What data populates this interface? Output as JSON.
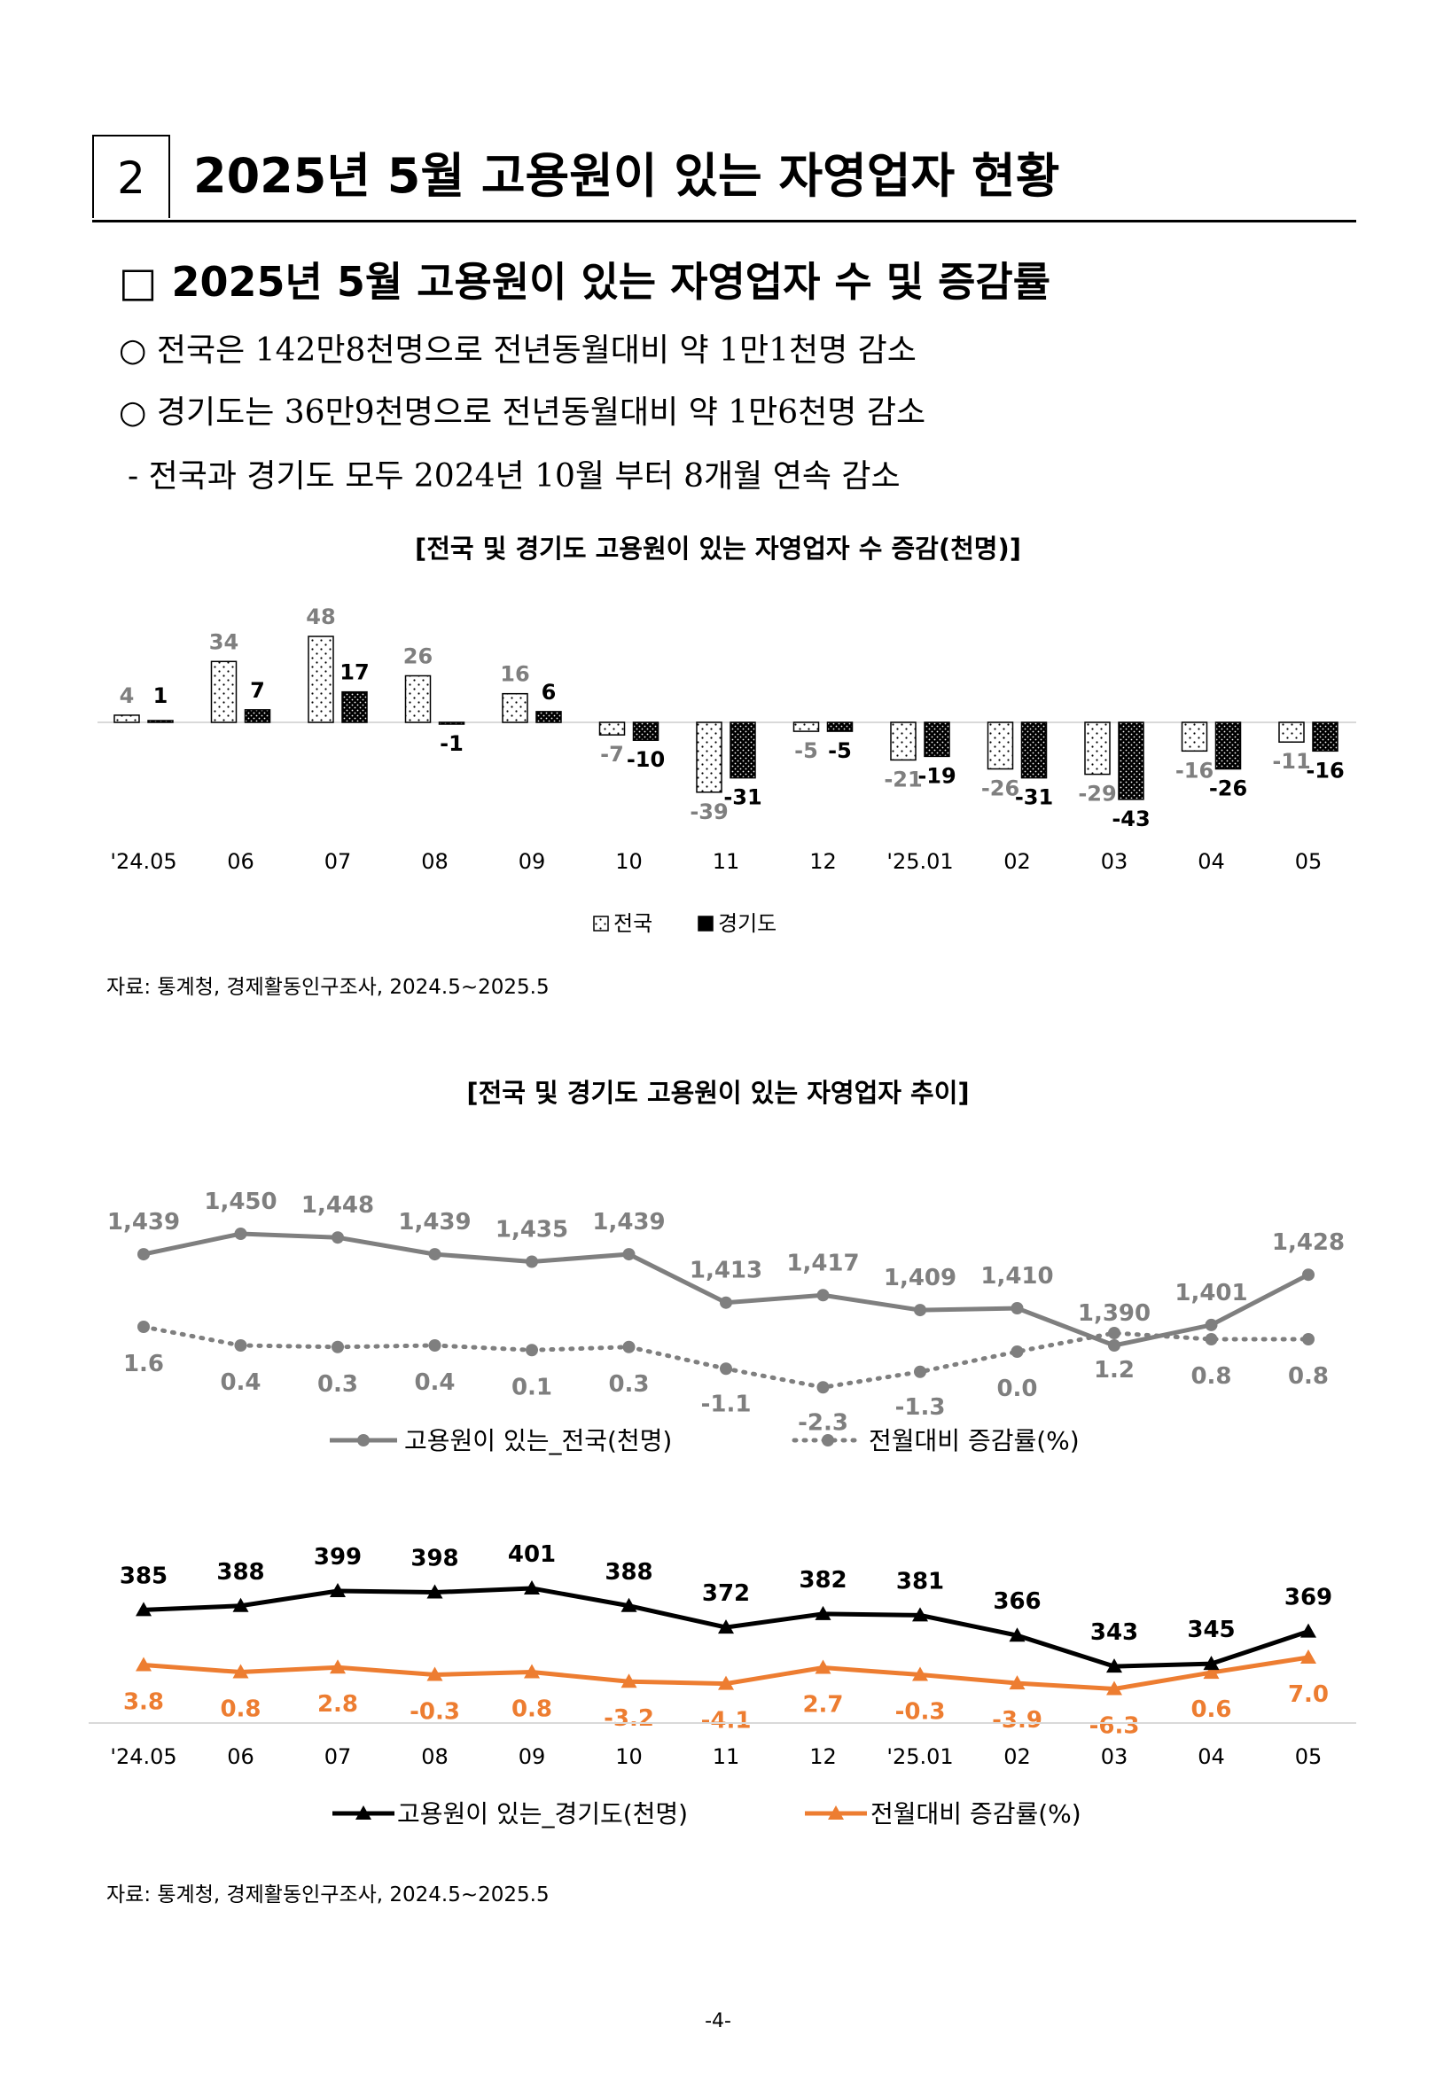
{
  "section": {
    "number": "2",
    "title": "2025년 5월 고용원이 있는 자영업자 현황"
  },
  "subheading": "□ 2025년 5월 고용원이 있는 자영업자 수 및 증감률",
  "bullets": [
    "○ 전국은 142만8천명으로 전년동월대비 약 1만1천명 감소",
    "○ 경기도는 36만9천명으로 전년동월대비 약 1만6천명 감소",
    "- 전국과 경기도 모두 2024년 10월 부터 8개월 연속 감소"
  ],
  "chart1_title": "[전국 및 경기도 고용원이 있는 자영업자 수 증감(천명)]",
  "source1": "자료: 통계청, 경제활동인구조사, 2024.5~2025.5",
  "chart2_title": "[전국 및 경기도 고용원이 있는 자영업자 추이]",
  "source2": "자료: 통계청, 경제활동인구조사, 2024.5~2025.5",
  "page_number": "-4-",
  "colors": {
    "gray": "#7f7f7f",
    "orange": "#ed7d31",
    "black": "#000000"
  },
  "chart_data": [
    {
      "type": "bar",
      "title": "[전국 및 경기도 고용원이 있는 자영업자 수 증감(천명)]",
      "categories": [
        "'24.05",
        "06",
        "07",
        "08",
        "09",
        "10",
        "11",
        "12",
        "'25.01",
        "02",
        "03",
        "04",
        "05"
      ],
      "series": [
        {
          "name": "전국",
          "values": [
            4,
            34,
            48,
            26,
            16,
            -7,
            -39,
            -5,
            -21,
            -26,
            -29,
            -16,
            -11
          ]
        },
        {
          "name": "경기도",
          "values": [
            1,
            7,
            17,
            -1,
            6,
            -10,
            -31,
            -5,
            -19,
            -31,
            -43,
            -26,
            -16
          ]
        }
      ],
      "legend": "bottom"
    },
    {
      "type": "line",
      "categories": [
        "'24.05",
        "06",
        "07",
        "08",
        "09",
        "10",
        "11",
        "12",
        "'25.01",
        "02",
        "03",
        "04",
        "05"
      ],
      "series": [
        {
          "name": "고용원이 있는_전국(천명)",
          "values": [
            1439,
            1450,
            1448,
            1439,
            1435,
            1439,
            1413,
            1417,
            1409,
            1410,
            1390,
            1401,
            1428
          ]
        },
        {
          "name": "전월대비 증감률(%)",
          "values": [
            1.6,
            0.4,
            0.3,
            0.4,
            0.1,
            0.3,
            -1.1,
            -2.3,
            -1.3,
            0.0,
            1.2,
            0.8,
            0.8
          ]
        }
      ],
      "legend": "bottom"
    },
    {
      "type": "line",
      "categories": [
        "'24.05",
        "06",
        "07",
        "08",
        "09",
        "10",
        "11",
        "12",
        "'25.01",
        "02",
        "03",
        "04",
        "05"
      ],
      "series": [
        {
          "name": "고용원이 있는_경기도(천명)",
          "values": [
            385,
            388,
            399,
            398,
            401,
            388,
            372,
            382,
            381,
            366,
            343,
            345,
            369
          ]
        },
        {
          "name": "전월대비 증감률(%)",
          "values": [
            3.8,
            0.8,
            2.8,
            -0.3,
            0.8,
            -3.2,
            -4.1,
            2.7,
            -0.3,
            -3.9,
            -6.3,
            0.6,
            7.0
          ]
        }
      ],
      "legend": "bottom"
    }
  ]
}
